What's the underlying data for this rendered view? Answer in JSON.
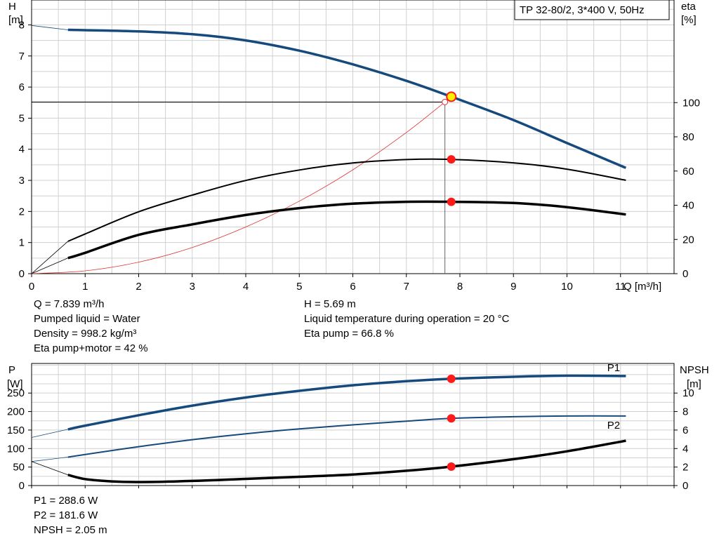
{
  "chart_data": [
    {
      "type": "line",
      "title": "TP 32-80/2, 3*400 V, 50Hz",
      "xlabel": "Q [m³/h]",
      "ylabel_left": "H",
      "ylabel_left_unit": "[m]",
      "ylabel_right": "eta",
      "ylabel_right_unit": "[%]",
      "xlim": [
        0,
        12
      ],
      "ylim_left": [
        0,
        8.8
      ],
      "ylim_right": [
        0,
        160
      ],
      "xticks": [
        0,
        1,
        2,
        3,
        4,
        5,
        6,
        7,
        8,
        9,
        10,
        11
      ],
      "yticks_left": [
        0,
        1,
        2,
        3,
        4,
        5,
        6,
        7,
        8
      ],
      "yticks_right": [
        0,
        20,
        40,
        60,
        80,
        100
      ],
      "grid": true,
      "series": [
        {
          "axis": "left",
          "color": "#174a7c",
          "x": [
            0.68,
            1,
            2,
            3,
            4,
            5,
            6,
            7,
            7.839,
            9,
            10,
            11.1
          ],
          "y": [
            7.84,
            7.83,
            7.79,
            7.7,
            7.5,
            7.17,
            6.73,
            6.2,
            5.69,
            4.94,
            4.2,
            3.4
          ]
        },
        {
          "axis": "right",
          "color": "#000000",
          "x": [
            0.68,
            1,
            2,
            3,
            4,
            5,
            6,
            7,
            7.839,
            9,
            10,
            11.1
          ],
          "y": [
            18.9,
            23.2,
            36.2,
            45.9,
            54.5,
            60.6,
            64.7,
            66.7,
            66.8,
            64.8,
            61.1,
            54.6
          ]
        },
        {
          "axis": "right",
          "color": "#000000",
          "x": [
            0.68,
            1,
            2,
            3,
            4,
            5,
            6,
            7,
            7.839,
            9,
            10,
            11.1
          ],
          "y": [
            9.1,
            12.2,
            22.7,
            28.8,
            34.3,
            38.3,
            40.9,
            42,
            42,
            41.3,
            38.9,
            34.6
          ]
        },
        {
          "axis": "left",
          "color": "#e03030",
          "x": [
            0,
            1,
            2,
            3,
            4,
            5,
            6,
            7,
            7.72
          ],
          "y": [
            0,
            0.09,
            0.37,
            0.84,
            1.5,
            2.33,
            3.34,
            4.54,
            5.52
          ]
        }
      ],
      "extension_lines": [
        {
          "axis": "left",
          "x": [
            0,
            0.68
          ],
          "y": [
            7.98,
            7.84
          ]
        },
        {
          "axis": "right",
          "x": [
            0,
            0.68
          ],
          "y": [
            0,
            18.9
          ]
        },
        {
          "axis": "right",
          "x": [
            0,
            0.68
          ],
          "y": [
            0,
            9.1
          ]
        }
      ],
      "operating_point": {
        "x": 7.839,
        "y": 5.69
      },
      "eta_markers": [
        66.8,
        42
      ],
      "system_point": {
        "x": 7.72,
        "y": 5.52
      }
    },
    {
      "type": "line",
      "ylabel_left": "P",
      "ylabel_left_unit": "[W]",
      "ylabel_right": "NPSH",
      "ylabel_right_unit": "[m]",
      "xlim": [
        0,
        12
      ],
      "ylim_left": [
        0,
        330
      ],
      "ylim_right": [
        0,
        13.2
      ],
      "yticks_left": [
        0,
        50,
        100,
        150,
        200,
        250
      ],
      "yticks_right": [
        0,
        2,
        4,
        6,
        8,
        10
      ],
      "grid": true,
      "series": [
        {
          "name": "P1",
          "axis": "left",
          "color": "#174a7c",
          "x": [
            0.68,
            1,
            2,
            3,
            4,
            5,
            6,
            7,
            7.839,
            9,
            10,
            11.1
          ],
          "y": [
            152,
            162,
            190,
            216,
            238,
            256,
            271,
            282,
            288.6,
            294,
            297,
            296
          ]
        },
        {
          "name": "P2",
          "axis": "left",
          "color": "#174a7c",
          "x": [
            0.68,
            1,
            2,
            3,
            4,
            5,
            6,
            7,
            7.839,
            9,
            10,
            11.1
          ],
          "y": [
            77,
            84,
            105,
            124,
            140,
            153,
            164,
            174,
            181.6,
            186,
            188,
            188
          ]
        },
        {
          "axis": "right",
          "color": "#000000",
          "x": [
            0.68,
            1,
            1.5,
            2,
            3,
            4,
            5,
            6,
            7,
            7.839,
            9,
            10,
            11.1
          ],
          "y": [
            1.15,
            0.7,
            0.45,
            0.38,
            0.5,
            0.72,
            0.95,
            1.2,
            1.6,
            2.05,
            2.85,
            3.7,
            4.85
          ]
        }
      ],
      "extension_lines": [
        {
          "axis": "left",
          "x": [
            0,
            0.68
          ],
          "y": [
            130,
            152
          ]
        },
        {
          "axis": "left",
          "x": [
            0,
            0.68
          ],
          "y": [
            65,
            77
          ]
        },
        {
          "axis": "right",
          "x": [
            0,
            0.68
          ],
          "y": [
            2.6,
            1.15
          ]
        }
      ],
      "markers": [
        288.6,
        181.6
      ],
      "npsh_marker": 2.05
    }
  ],
  "operating_point_info": {
    "q": "Q = 7.839 m³/h",
    "liquid": "Pumped liquid = Water",
    "density": "Density = 998.2 kg/m³",
    "eta_total": "Eta pump+motor = 42 %",
    "h": "H = 5.69 m",
    "temperature": "Liquid temperature during operation = 20 °C",
    "eta_pump": "Eta pump = 66.8 %"
  },
  "power_info": {
    "p1": "P1 = 288.6 W",
    "p2": "P2 = 181.6 W",
    "npsh": "NPSH = 2.05 m"
  },
  "colors": {
    "curve_blue": "#174a7c",
    "marker_red": "#ff1a1a",
    "operating_point": "#ffee00",
    "system_curve": "#e03030",
    "grid": "#d0d0d0"
  }
}
